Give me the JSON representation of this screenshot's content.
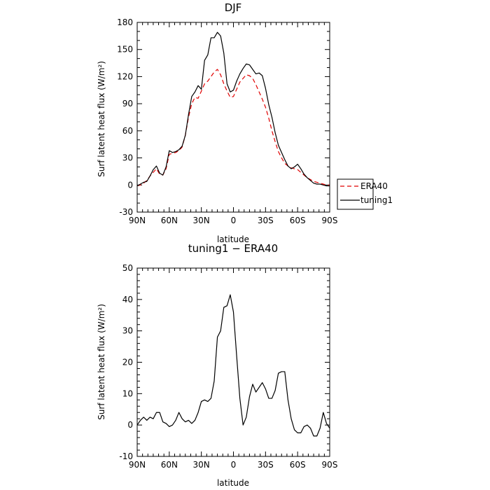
{
  "chart_data": [
    {
      "type": "line",
      "title": "DJF",
      "xlabel": "latitude",
      "ylabel": "Surf latent heat flux (W/m²)",
      "xlim": [
        90,
        -90
      ],
      "ylim": [
        -30,
        180
      ],
      "xticks": [
        "90N",
        "60N",
        "30N",
        "0",
        "30S",
        "60S",
        "90S"
      ],
      "yticks": [
        "-30",
        "0",
        "30",
        "60",
        "90",
        "120",
        "150",
        "180"
      ],
      "legend": {
        "position": "right",
        "entries": [
          "ERA40",
          "tuning1"
        ]
      },
      "series": [
        {
          "name": "ERA40",
          "color": "#e00000",
          "dash": "dashed",
          "x": [
            90,
            87,
            84,
            81,
            78,
            75,
            72,
            69,
            66,
            63,
            60,
            57,
            54,
            51,
            48,
            45,
            42,
            39,
            36,
            33,
            30,
            27,
            24,
            21,
            18,
            15,
            12,
            9,
            6,
            3,
            0,
            -3,
            -6,
            -9,
            -12,
            -15,
            -18,
            -21,
            -24,
            -27,
            -30,
            -33,
            -36,
            -39,
            -42,
            -45,
            -48,
            -51,
            -54,
            -57,
            -60,
            -63,
            -66,
            -69,
            -72,
            -75,
            -78,
            -81,
            -84,
            -87,
            -90
          ],
          "y": [
            -1,
            0,
            2,
            5,
            10,
            14,
            18,
            12,
            11,
            18,
            34,
            35,
            36,
            38,
            42,
            55,
            75,
            90,
            97,
            96,
            104,
            112,
            115,
            120,
            125,
            128,
            122,
            112,
            104,
            97,
            98,
            106,
            114,
            118,
            122,
            121,
            118,
            111,
            103,
            95,
            86,
            74,
            60,
            48,
            37,
            30,
            24,
            21,
            19,
            18,
            17,
            14,
            11,
            8,
            6,
            4,
            3,
            2,
            1,
            0,
            0
          ]
        },
        {
          "name": "tuning1",
          "color": "#000000",
          "dash": "solid",
          "x": [
            90,
            87,
            84,
            81,
            78,
            75,
            72,
            69,
            66,
            63,
            60,
            57,
            54,
            51,
            48,
            45,
            42,
            39,
            36,
            33,
            30,
            27,
            24,
            21,
            18,
            15,
            12,
            9,
            6,
            3,
            0,
            -3,
            -6,
            -9,
            -12,
            -15,
            -18,
            -21,
            -24,
            -27,
            -30,
            -33,
            -36,
            -39,
            -42,
            -45,
            -48,
            -51,
            -54,
            -57,
            -60,
            -63,
            -66,
            -69,
            -72,
            -75,
            -78,
            -81,
            -84,
            -87,
            -90
          ],
          "y": [
            -1,
            1,
            3,
            4,
            10,
            17,
            21,
            13,
            11,
            20,
            38,
            36,
            37,
            39,
            43,
            55,
            78,
            98,
            103,
            110,
            106,
            138,
            144,
            163,
            163,
            169,
            165,
            146,
            112,
            103,
            105,
            115,
            123,
            129,
            134,
            133,
            128,
            123,
            124,
            121,
            107,
            89,
            75,
            58,
            44,
            36,
            28,
            21,
            18,
            20,
            23,
            18,
            12,
            8,
            5,
            2,
            1,
            1,
            0,
            -1,
            -1
          ]
        }
      ]
    },
    {
      "type": "line",
      "title": "tuning1 − ERA40",
      "xlabel": "latitude",
      "ylabel": "Surf latent heat flux (W/m²)",
      "xlim": [
        90,
        -90
      ],
      "ylim": [
        -10,
        50
      ],
      "xticks": [
        "90N",
        "60N",
        "30N",
        "0",
        "30S",
        "60S",
        "90S"
      ],
      "yticks": [
        "-10",
        "0",
        "10",
        "20",
        "30",
        "40",
        "50"
      ],
      "series": [
        {
          "color": "#000000",
          "dash": "solid",
          "x": [
            90,
            87,
            84,
            81,
            78,
            75,
            72,
            69,
            66,
            63,
            60,
            57,
            54,
            51,
            48,
            45,
            42,
            39,
            36,
            33,
            30,
            27,
            24,
            21,
            18,
            15,
            12,
            9,
            6,
            3,
            0,
            -3,
            -6,
            -9,
            -12,
            -15,
            -18,
            -21,
            -24,
            -27,
            -30,
            -33,
            -36,
            -39,
            -42,
            -45,
            -48,
            -51,
            -54,
            -57,
            -60,
            -63,
            -66,
            -69,
            -72,
            -75,
            -78,
            -81,
            -84,
            -87,
            -90
          ],
          "y": [
            0,
            1.5,
            2.5,
            1.5,
            2.5,
            2,
            4,
            4,
            1,
            0.5,
            -0.5,
            0,
            1.5,
            4,
            2,
            1,
            1.5,
            0.5,
            1.5,
            4,
            7.5,
            8,
            7.5,
            8.5,
            14,
            28,
            30,
            37.5,
            38,
            41.5,
            36,
            22,
            8.5,
            0,
            2.5,
            9,
            13,
            10.5,
            12,
            13.5,
            11.5,
            8.5,
            8.5,
            11,
            16.5,
            17,
            17,
            8,
            2,
            -1.5,
            -2.5,
            -2.5,
            -0.5,
            0,
            -1,
            -3.5,
            -3.5,
            -1,
            4,
            0.5,
            -1
          ]
        }
      ]
    }
  ]
}
